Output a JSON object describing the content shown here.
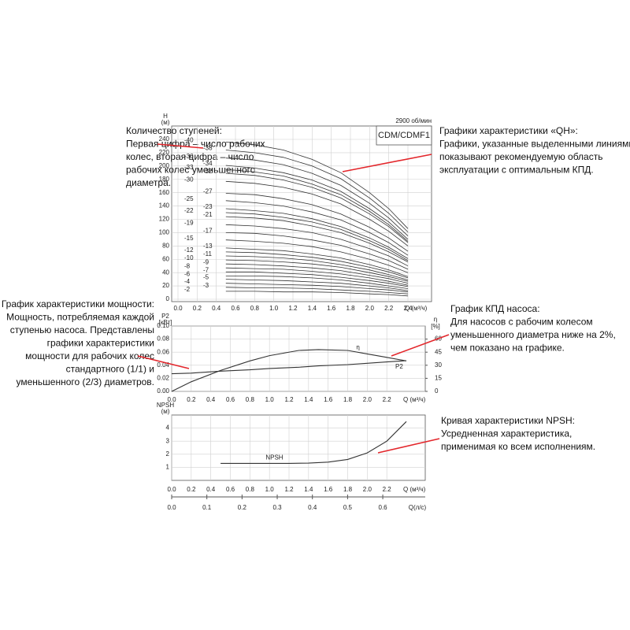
{
  "chart_data": [
    {
      "type": "line",
      "ylabel": "H",
      "yunit": "(м)",
      "xlabel": "Q (м³/ч)",
      "speed": "2900 об/мин",
      "model": "CDM/CDMF1",
      "color": "#333333",
      "grid": true,
      "x": [
        0.5,
        0.8,
        1.1,
        1.4,
        1.7,
        2.0,
        2.2,
        2.4
      ],
      "xlim": [
        0,
        2.4
      ],
      "ylim": [
        0,
        240
      ],
      "xticks": [
        {
          "value": 0,
          "label": "0.0"
        },
        0.2,
        0.4,
        0.6,
        0.8,
        {
          "value": 1,
          "label": "1.0"
        },
        1.2,
        1.4,
        1.6,
        1.8,
        {
          "value": 2,
          "label": "2.0"
        },
        2.2,
        2.4
      ],
      "yticks": [
        0,
        20,
        40,
        60,
        80,
        100,
        120,
        140,
        160,
        180,
        200,
        220,
        240
      ],
      "series": [
        {
          "name": "-40",
          "values": [
            236,
            232,
            224,
            210,
            190,
            160,
            136,
            106
          ]
        },
        {
          "name": "-38",
          "values": [
            224,
            220,
            213,
            200,
            181,
            152,
            129,
            101
          ]
        },
        {
          "name": "-36",
          "values": [
            212,
            209,
            202,
            189,
            171,
            144,
            122,
            95
          ]
        },
        {
          "name": "-34",
          "values": [
            201,
            197,
            190,
            179,
            162,
            136,
            116,
            90
          ]
        },
        {
          "name": "-33",
          "values": [
            195,
            191,
            185,
            173,
            157,
            132,
            112,
            87
          ]
        },
        {
          "name": "-32",
          "values": [
            189,
            186,
            179,
            168,
            152,
            128,
            109,
            85
          ]
        },
        {
          "name": "-30",
          "values": [
            177,
            174,
            168,
            158,
            143,
            120,
            102,
            80
          ]
        },
        {
          "name": "-27",
          "values": [
            159,
            157,
            151,
            142,
            128,
            108,
            92,
            72
          ]
        },
        {
          "name": "-25",
          "values": [
            148,
            145,
            140,
            131,
            119,
            100,
            85,
            66
          ]
        },
        {
          "name": "-23",
          "values": [
            136,
            133,
            129,
            121,
            109,
            92,
            78,
            61
          ]
        },
        {
          "name": "-22",
          "values": [
            130,
            128,
            123,
            116,
            105,
            88,
            75,
            58
          ]
        },
        {
          "name": "-21",
          "values": [
            124,
            122,
            118,
            110,
            100,
            84,
            71,
            56
          ]
        },
        {
          "name": "-19",
          "values": [
            112,
            110,
            106,
            100,
            90,
            76,
            65,
            50
          ]
        },
        {
          "name": "-17",
          "values": [
            100,
            99,
            95,
            89,
            81,
            68,
            58,
            45
          ]
        },
        {
          "name": "-15",
          "values": [
            89,
            87,
            84,
            79,
            71,
            60,
            51,
            40
          ]
        },
        {
          "name": "-13",
          "values": [
            77,
            75,
            73,
            68,
            62,
            52,
            44,
            34
          ]
        },
        {
          "name": "-12",
          "values": [
            71,
            70,
            67,
            63,
            57,
            48,
            41,
            32
          ]
        },
        {
          "name": "-11",
          "values": [
            65,
            64,
            62,
            58,
            52,
            44,
            37,
            29
          ]
        },
        {
          "name": "-10",
          "values": [
            59,
            58,
            56,
            53,
            48,
            40,
            34,
            27
          ]
        },
        {
          "name": "-9",
          "values": [
            53,
            52,
            50,
            47,
            43,
            36,
            31,
            24
          ]
        },
        {
          "name": "-8",
          "values": [
            47,
            46,
            45,
            42,
            38,
            32,
            27,
            21
          ]
        },
        {
          "name": "-7",
          "values": [
            41,
            41,
            39,
            37,
            33,
            28,
            24,
            19
          ]
        },
        {
          "name": "-6",
          "values": [
            35,
            35,
            34,
            32,
            29,
            24,
            20,
            16
          ]
        },
        {
          "name": "-5",
          "values": [
            30,
            29,
            28,
            26,
            24,
            20,
            17,
            13
          ]
        },
        {
          "name": "-4",
          "values": [
            24,
            23,
            22,
            21,
            19,
            16,
            14,
            11
          ]
        },
        {
          "name": "-3",
          "values": [
            18,
            17,
            17,
            16,
            14,
            12,
            10,
            8
          ]
        },
        {
          "name": "-2",
          "values": [
            12,
            12,
            11,
            11,
            10,
            8,
            7,
            5
          ]
        }
      ]
    },
    {
      "type": "line",
      "ylabel": "P2",
      "yunit": "[кВт]",
      "y2label": "η",
      "y2unit": "[%]",
      "xlabel": "Q (м³/ч)",
      "color": "#333333",
      "grid": true,
      "x": [
        0,
        0.2,
        0.5,
        0.8,
        1.0,
        1.3,
        1.5,
        1.8,
        2.0,
        2.2,
        2.4
      ],
      "xlim": [
        0,
        2.4
      ],
      "ylim": [
        0,
        0.1
      ],
      "y2lim": [
        0,
        75
      ],
      "xticks": [
        {
          "value": 0,
          "label": "0.0"
        },
        0.2,
        0.4,
        0.6,
        0.8,
        {
          "value": 1,
          "label": "1.0"
        },
        1.2,
        1.4,
        1.6,
        1.8,
        {
          "value": 2,
          "label": "2.0"
        },
        2.2
      ],
      "yticks": [
        {
          "value": 0,
          "label": "0.00"
        },
        {
          "value": 0.02,
          "label": "0.02"
        },
        {
          "value": 0.04,
          "label": "0.04"
        },
        {
          "value": 0.06,
          "label": "0.06"
        },
        {
          "value": 0.08,
          "label": "0.08"
        },
        {
          "value": 0.1,
          "label": "0.10"
        }
      ],
      "y2ticks": [
        0,
        15,
        30,
        45,
        60
      ],
      "series": [
        {
          "name": "η",
          "axis": "y2",
          "values": [
            0,
            11,
            24,
            35,
            41,
            47,
            48,
            47,
            43,
            39,
            35
          ]
        },
        {
          "name": "P2",
          "values": [
            0.027,
            0.028,
            0.031,
            0.033,
            0.035,
            0.037,
            0.039,
            0.041,
            0.043,
            0.045,
            0.047
          ]
        }
      ]
    },
    {
      "type": "line",
      "ylabel": "NPSH",
      "yunit": "(м)",
      "xlabel": "Q (м³/ч)",
      "x2label": "Q(л/с)",
      "color": "#333333",
      "grid": true,
      "x": [
        0.5,
        0.8,
        1.0,
        1.2,
        1.4,
        1.6,
        1.8,
        2.0,
        2.2,
        2.4
      ],
      "xlim": [
        0,
        2.4
      ],
      "ylim": [
        0,
        5
      ],
      "x2lim": [
        0,
        0.667
      ],
      "xticks": [
        {
          "value": 0,
          "label": "0.0"
        },
        0.2,
        0.4,
        0.6,
        0.8,
        {
          "value": 1,
          "label": "1.0"
        },
        1.2,
        1.4,
        1.6,
        1.8,
        {
          "value": 2,
          "label": "2.0"
        },
        2.2
      ],
      "yticks": [
        1,
        2,
        3,
        4
      ],
      "x2ticks": [
        {
          "value": 0,
          "label": "0.0"
        },
        0.1,
        0.2,
        0.3,
        0.4,
        0.5,
        0.6
      ],
      "series": [
        {
          "name": "NPSH",
          "values": [
            1.3,
            1.3,
            1.3,
            1.3,
            1.32,
            1.4,
            1.6,
            2.1,
            3.0,
            4.5
          ]
        }
      ]
    }
  ],
  "annotations": [
    {
      "lines": [
        "Количество ступеней:",
        "Первая цифра – число рабочих",
        "колес, вторая цифра – число",
        "рабочих колес уменьшенного",
        "диаметра."
      ]
    },
    {
      "lines": [
        "Графики характеристики «QH»:",
        "Графики, указанные выделенными линиями,",
        "показывают рекомендуемую область",
        "эксплуатации с оптимальным КПД."
      ]
    },
    {
      "lines": [
        "График характеристики мощности:",
        "Мощность, потребляемая каждой",
        "ступенью насоса. Представлены",
        "графики характеристики",
        "мощности для рабочих колес",
        "стандартного (1/1) и",
        "уменьшенного (2/3) диаметров."
      ]
    },
    {
      "lines": [
        "График КПД насоса:",
        "Для насосов с рабочим колесом",
        "уменьшенного диаметра ниже на 2%,",
        "чем показано на графике."
      ]
    },
    {
      "lines": [
        "Кривая характеристики NPSH:",
        "Усредненная характеристика,",
        "применимая ко всем исполнениям."
      ]
    }
  ]
}
